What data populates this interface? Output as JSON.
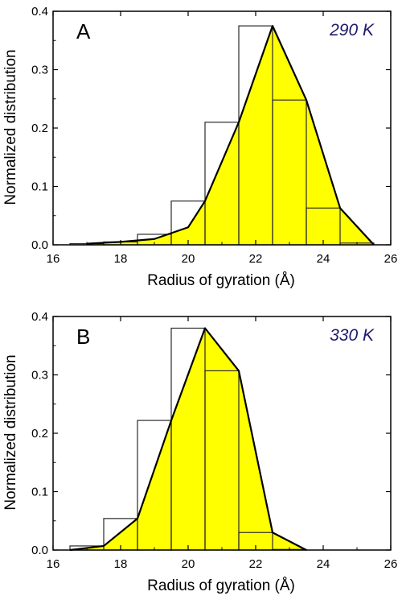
{
  "chart_data": [
    {
      "type": "bar",
      "panel_label": "A",
      "annotation": "290 K",
      "xlabel": "Radius of gyration (Å)",
      "ylabel": "Normalized distribution",
      "xlim": [
        16,
        26
      ],
      "ylim": [
        0,
        0.4
      ],
      "xticks": [
        "16",
        "18",
        "20",
        "22",
        "24",
        "26"
      ],
      "yticks": [
        "0.0",
        "0.1",
        "0.2",
        "0.3",
        "0.4"
      ],
      "grid": false,
      "bin_width": 1,
      "histogram": {
        "bin_centers": [
          17,
          18,
          19,
          20,
          21,
          22,
          23,
          24,
          25
        ],
        "values": [
          0.002,
          0.005,
          0.018,
          0.075,
          0.21,
          0.375,
          0.248,
          0.063,
          0.003
        ]
      },
      "curve": {
        "x": [
          17,
          18,
          19,
          20,
          20.5,
          21.5,
          22.5,
          23.5,
          24.5,
          25.5
        ],
        "y": [
          0.002,
          0.005,
          0.01,
          0.03,
          0.075,
          0.21,
          0.375,
          0.248,
          0.063,
          0.0
        ]
      },
      "colors": {
        "fill": "#ffff00",
        "line": "#000000",
        "annotation": "#1e1a6e"
      }
    },
    {
      "type": "bar",
      "panel_label": "B",
      "annotation": "330 K",
      "xlabel": "Radius of gyration (Å)",
      "ylabel": "Normalized distribution",
      "xlim": [
        16,
        26
      ],
      "ylim": [
        0,
        0.4
      ],
      "xticks": [
        "16",
        "18",
        "20",
        "22",
        "24",
        "26"
      ],
      "yticks": [
        "0.0",
        "0.1",
        "0.2",
        "0.3",
        "0.4"
      ],
      "grid": false,
      "bin_width": 1,
      "histogram": {
        "bin_centers": [
          17,
          18,
          19,
          20,
          21,
          22,
          23
        ],
        "values": [
          0.007,
          0.054,
          0.222,
          0.38,
          0.307,
          0.03,
          0.001
        ]
      },
      "curve": {
        "x": [
          16.5,
          17.5,
          18.5,
          19.5,
          20.5,
          21.5,
          22.5,
          23.5
        ],
        "y": [
          0.0,
          0.007,
          0.054,
          0.222,
          0.38,
          0.307,
          0.03,
          0.0
        ]
      },
      "colors": {
        "fill": "#ffff00",
        "line": "#000000",
        "annotation": "#1e1a6e"
      }
    }
  ]
}
